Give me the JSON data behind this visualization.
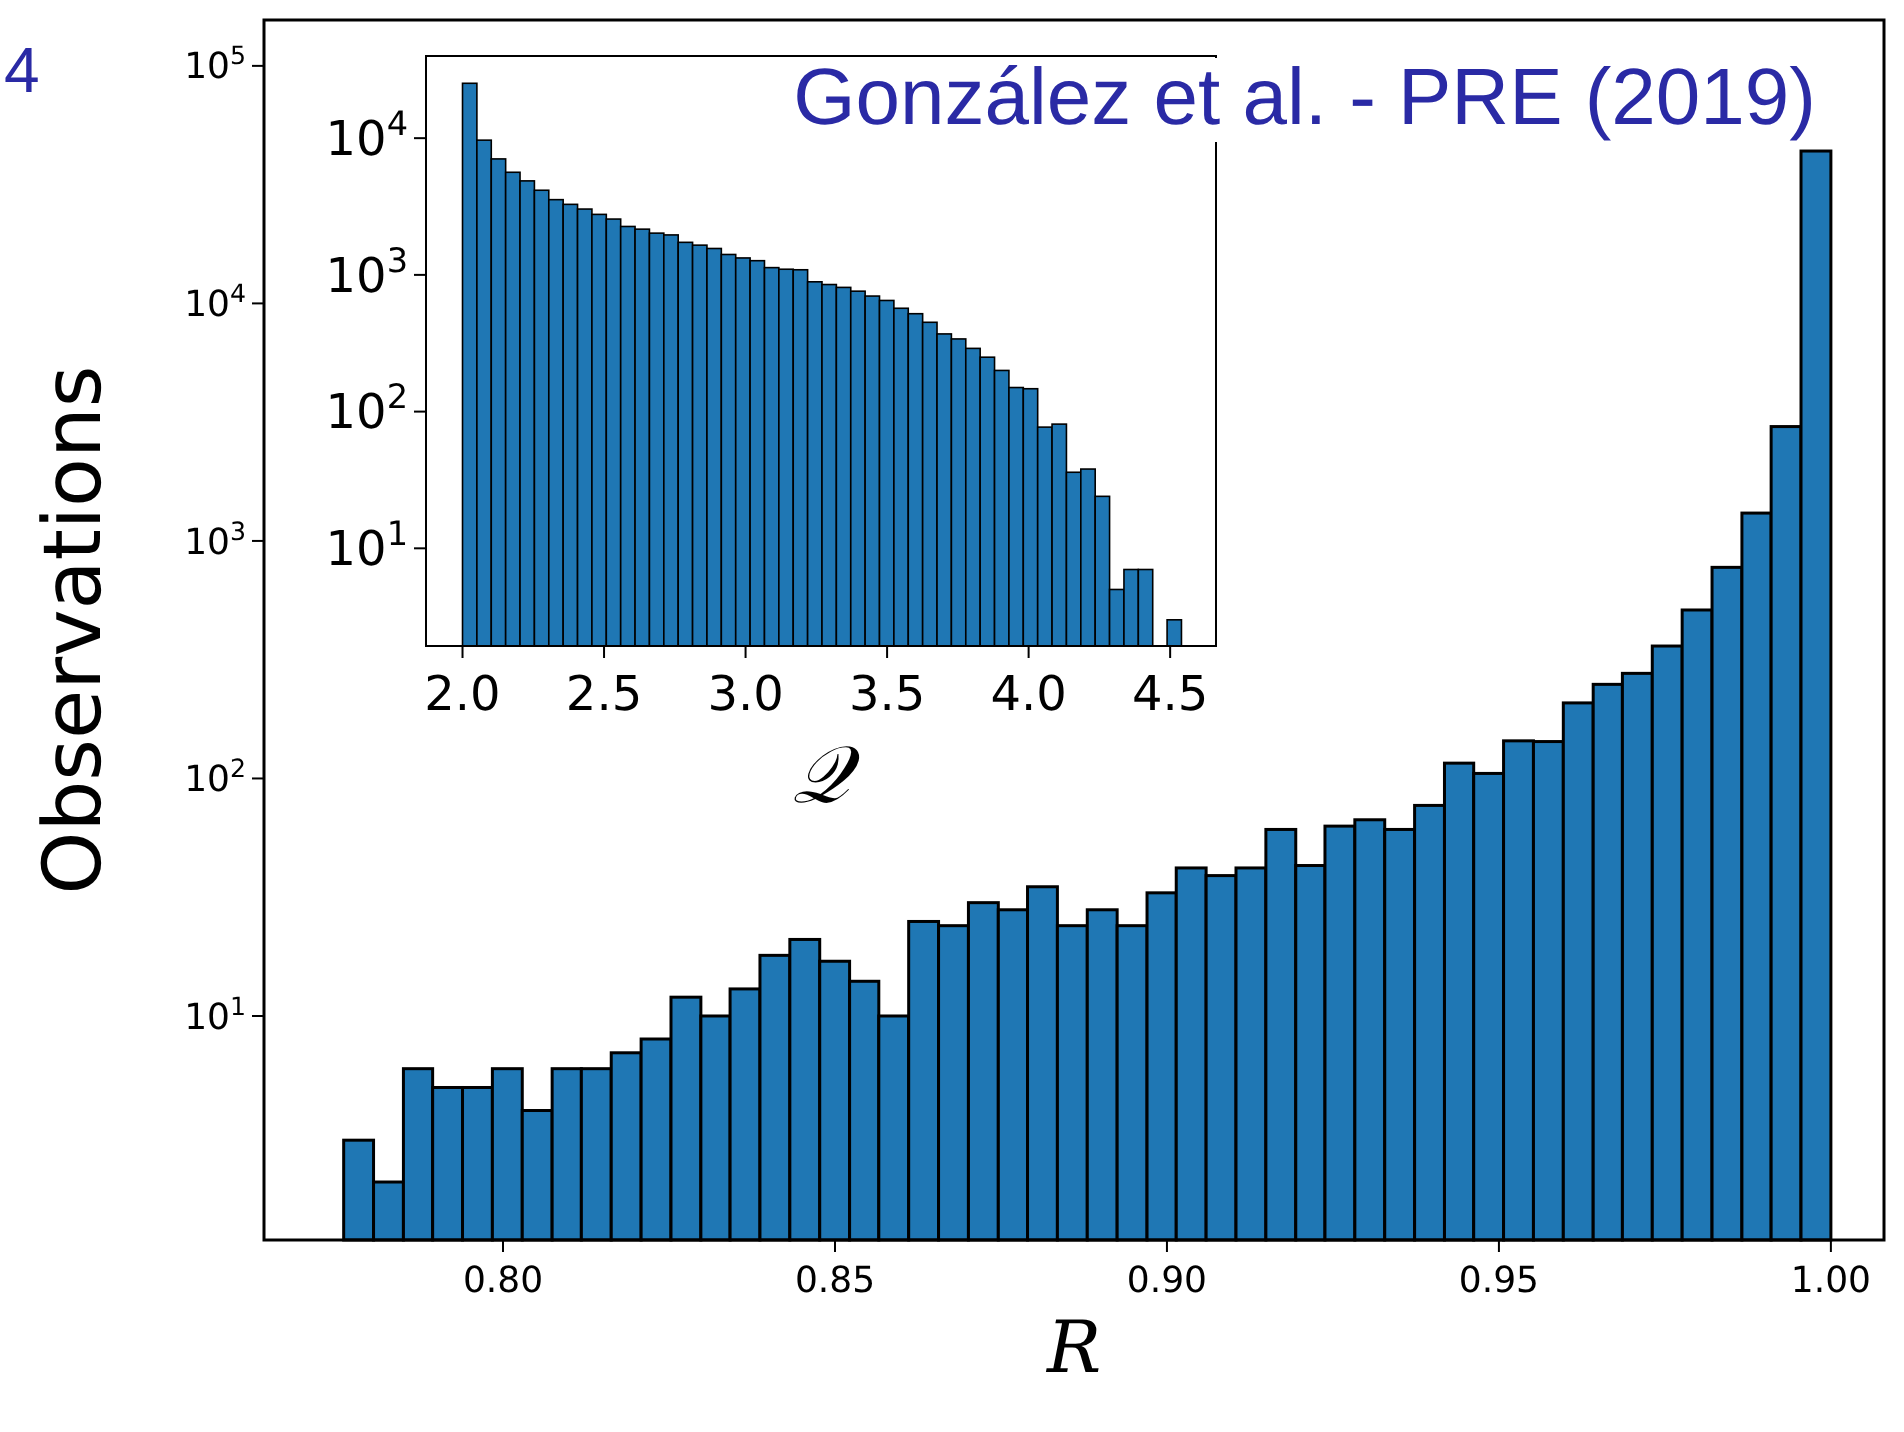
{
  "chart_data": [
    {
      "type": "histogram",
      "xlabel": "R",
      "ylabel": "Observations",
      "log": "y",
      "grid": false,
      "color": "#1f77b4",
      "annotations": [
        "González et al. - PRE (2019)",
        "4"
      ],
      "xlim": [
        0.764,
        1.008
      ],
      "ylim": [
        1.14,
        156000
      ],
      "xticks": [
        {
          "value": 0.8,
          "label": "0.80"
        },
        {
          "value": 0.85,
          "label": "0.85"
        },
        {
          "value": 0.9,
          "label": "0.90"
        },
        {
          "value": 0.95,
          "label": "0.95"
        },
        {
          "value": 1.0,
          "label": "1.00"
        }
      ],
      "yticks": [
        {
          "value": 10,
          "label": "10$^{1}$"
        },
        {
          "value": 100,
          "label": "10$^{2}$"
        },
        {
          "value": 1000,
          "label": "10$^{3}$"
        },
        {
          "value": 10000,
          "label": "10$^{4}$"
        },
        {
          "value": 100000,
          "label": "10$^{5}$"
        }
      ],
      "bins": [
        0.776,
        0.7805,
        0.785,
        0.7894,
        0.7939,
        0.7984,
        0.8029,
        0.8074,
        0.8118,
        0.8163,
        0.8208,
        0.8253,
        0.8298,
        0.8342,
        0.8387,
        0.8432,
        0.8477,
        0.8522,
        0.8566,
        0.8611,
        0.8656,
        0.8701,
        0.8746,
        0.879,
        0.8835,
        0.888,
        0.8925,
        0.897,
        0.9014,
        0.9059,
        0.9104,
        0.9149,
        0.9194,
        0.9238,
        0.9283,
        0.9328,
        0.9373,
        0.9418,
        0.9462,
        0.9507,
        0.9552,
        0.9597,
        0.9642,
        0.9686,
        0.9731,
        0.9776,
        0.9821,
        0.9866,
        0.991,
        0.9955,
        1.0
      ],
      "values": [
        3,
        2,
        6,
        5,
        5,
        6,
        4,
        6,
        6,
        7,
        8,
        12,
        10,
        13,
        18,
        21,
        17,
        14,
        10,
        25,
        24,
        30,
        28,
        35,
        24,
        28,
        24,
        33,
        42,
        39,
        42,
        61,
        43,
        63,
        67,
        61,
        77,
        116,
        105,
        144,
        143,
        208,
        249,
        277,
        361,
        512,
        774,
        1310,
        3030,
        43800
      ]
    },
    {
      "type": "histogram",
      "xlabel": "𝒬",
      "log": "y",
      "grid": false,
      "color": "#1f77b4",
      "xlim": [
        1.871,
        4.662
      ],
      "ylim": [
        1.93,
        39900
      ],
      "xticks": [
        {
          "value": 2.0,
          "label": "2.0"
        },
        {
          "value": 2.5,
          "label": "2.5"
        },
        {
          "value": 3.0,
          "label": "3.0"
        },
        {
          "value": 3.5,
          "label": "3.5"
        },
        {
          "value": 4.0,
          "label": "4.0"
        },
        {
          "value": 4.5,
          "label": "4.5"
        }
      ],
      "yticks": [
        {
          "value": 10,
          "label": "10$^{1}$"
        },
        {
          "value": 100,
          "label": "10$^{2}$"
        },
        {
          "value": 1000,
          "label": "10$^{3}$"
        },
        {
          "value": 10000,
          "label": "10$^{4}$"
        }
      ],
      "bins": [
        2.0,
        2.0508,
        2.1016,
        2.1524,
        2.2032,
        2.254,
        2.3048,
        2.3556,
        2.4064,
        2.4572,
        2.508,
        2.5588,
        2.6096,
        2.6604,
        2.7112,
        2.762,
        2.8128,
        2.8636,
        2.9144,
        2.9652,
        3.016,
        3.0668,
        3.1176,
        3.1684,
        3.2192,
        3.27,
        3.3208,
        3.3716,
        3.4224,
        3.4732,
        3.524,
        3.5748,
        3.6256,
        3.6764,
        3.7272,
        3.778,
        3.8288,
        3.8796,
        3.9304,
        3.9812,
        4.032,
        4.0828,
        4.1336,
        4.1844,
        4.2352,
        4.286,
        4.3368,
        4.3876,
        4.4384,
        4.4892,
        4.54
      ],
      "values": [
        25200,
        9670,
        7050,
        5630,
        4870,
        4160,
        3550,
        3280,
        3030,
        2770,
        2560,
        2260,
        2160,
        2020,
        1960,
        1730,
        1650,
        1560,
        1410,
        1330,
        1270,
        1130,
        1100,
        1090,
        890,
        850,
        810,
        760,
        700,
        650,
        570,
        520,
        450,
        370,
        340,
        290,
        250,
        200,
        150,
        147,
        77,
        81,
        36,
        38,
        24,
        5,
        7,
        7,
        null,
        3
      ]
    }
  ]
}
